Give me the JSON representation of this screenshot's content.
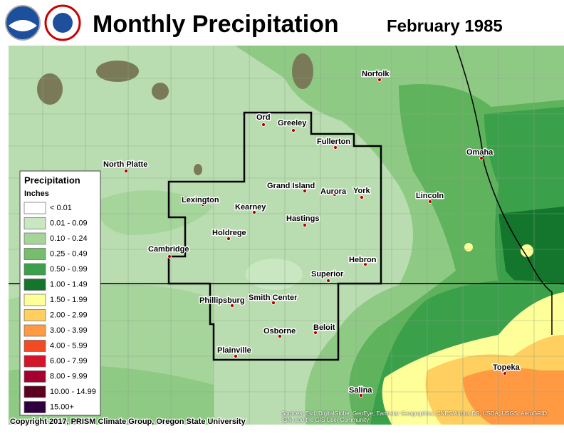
{
  "header": {
    "title": "Monthly Precipitation",
    "date": "February 1985"
  },
  "legend": {
    "title": "Precipitation",
    "units": "Inches",
    "items": [
      {
        "label": "< 0.01",
        "color": "#ffffff"
      },
      {
        "label": "0.01 - 0.09",
        "color": "#c9e7c1"
      },
      {
        "label": "0.10 - 0.24",
        "color": "#a5d59b"
      },
      {
        "label": "0.25 - 0.49",
        "color": "#76be6d"
      },
      {
        "label": "0.50 - 0.99",
        "color": "#3aa04a"
      },
      {
        "label": "1.00 - 1.49",
        "color": "#14752c"
      },
      {
        "label": "1.50 - 1.99",
        "color": "#ffff99"
      },
      {
        "label": "2.00 - 2.99",
        "color": "#ffcf5f"
      },
      {
        "label": "3.00 - 3.99",
        "color": "#ff9a42"
      },
      {
        "label": "4.00 - 5.99",
        "color": "#f24a22"
      },
      {
        "label": "6.00 - 7.99",
        "color": "#d3142a"
      },
      {
        "label": "8.00 - 9.99",
        "color": "#a5002f"
      },
      {
        "label": "10.00 - 14.99",
        "color": "#5c0020"
      },
      {
        "label": "15.00+",
        "color": "#2e003e"
      }
    ]
  },
  "cities": [
    "Norfolk",
    "Ord",
    "Greeley",
    "Fullerton",
    "Omaha",
    "North Platte",
    "Grand Island",
    "Aurora",
    "York",
    "Lincoln",
    "Lexington",
    "Kearney",
    "Hastings",
    "Holdrege",
    "Cambridge",
    "Hebron",
    "Superior",
    "Phillipsburg",
    "Smith Center",
    "Osborne",
    "Beloit",
    "Plainville",
    "Topeka",
    "Salina"
  ],
  "footer": {
    "copyright": "Copyright 2017, PRISM Climate Group, Oregon State University",
    "sources": "Sources: Esri, DigitalGlobe, GeoEye, Earthstar Geographics, CNES/Airbus DS, USDA, USGS, AeroGRID, IGN, and the GIS User Community"
  }
}
